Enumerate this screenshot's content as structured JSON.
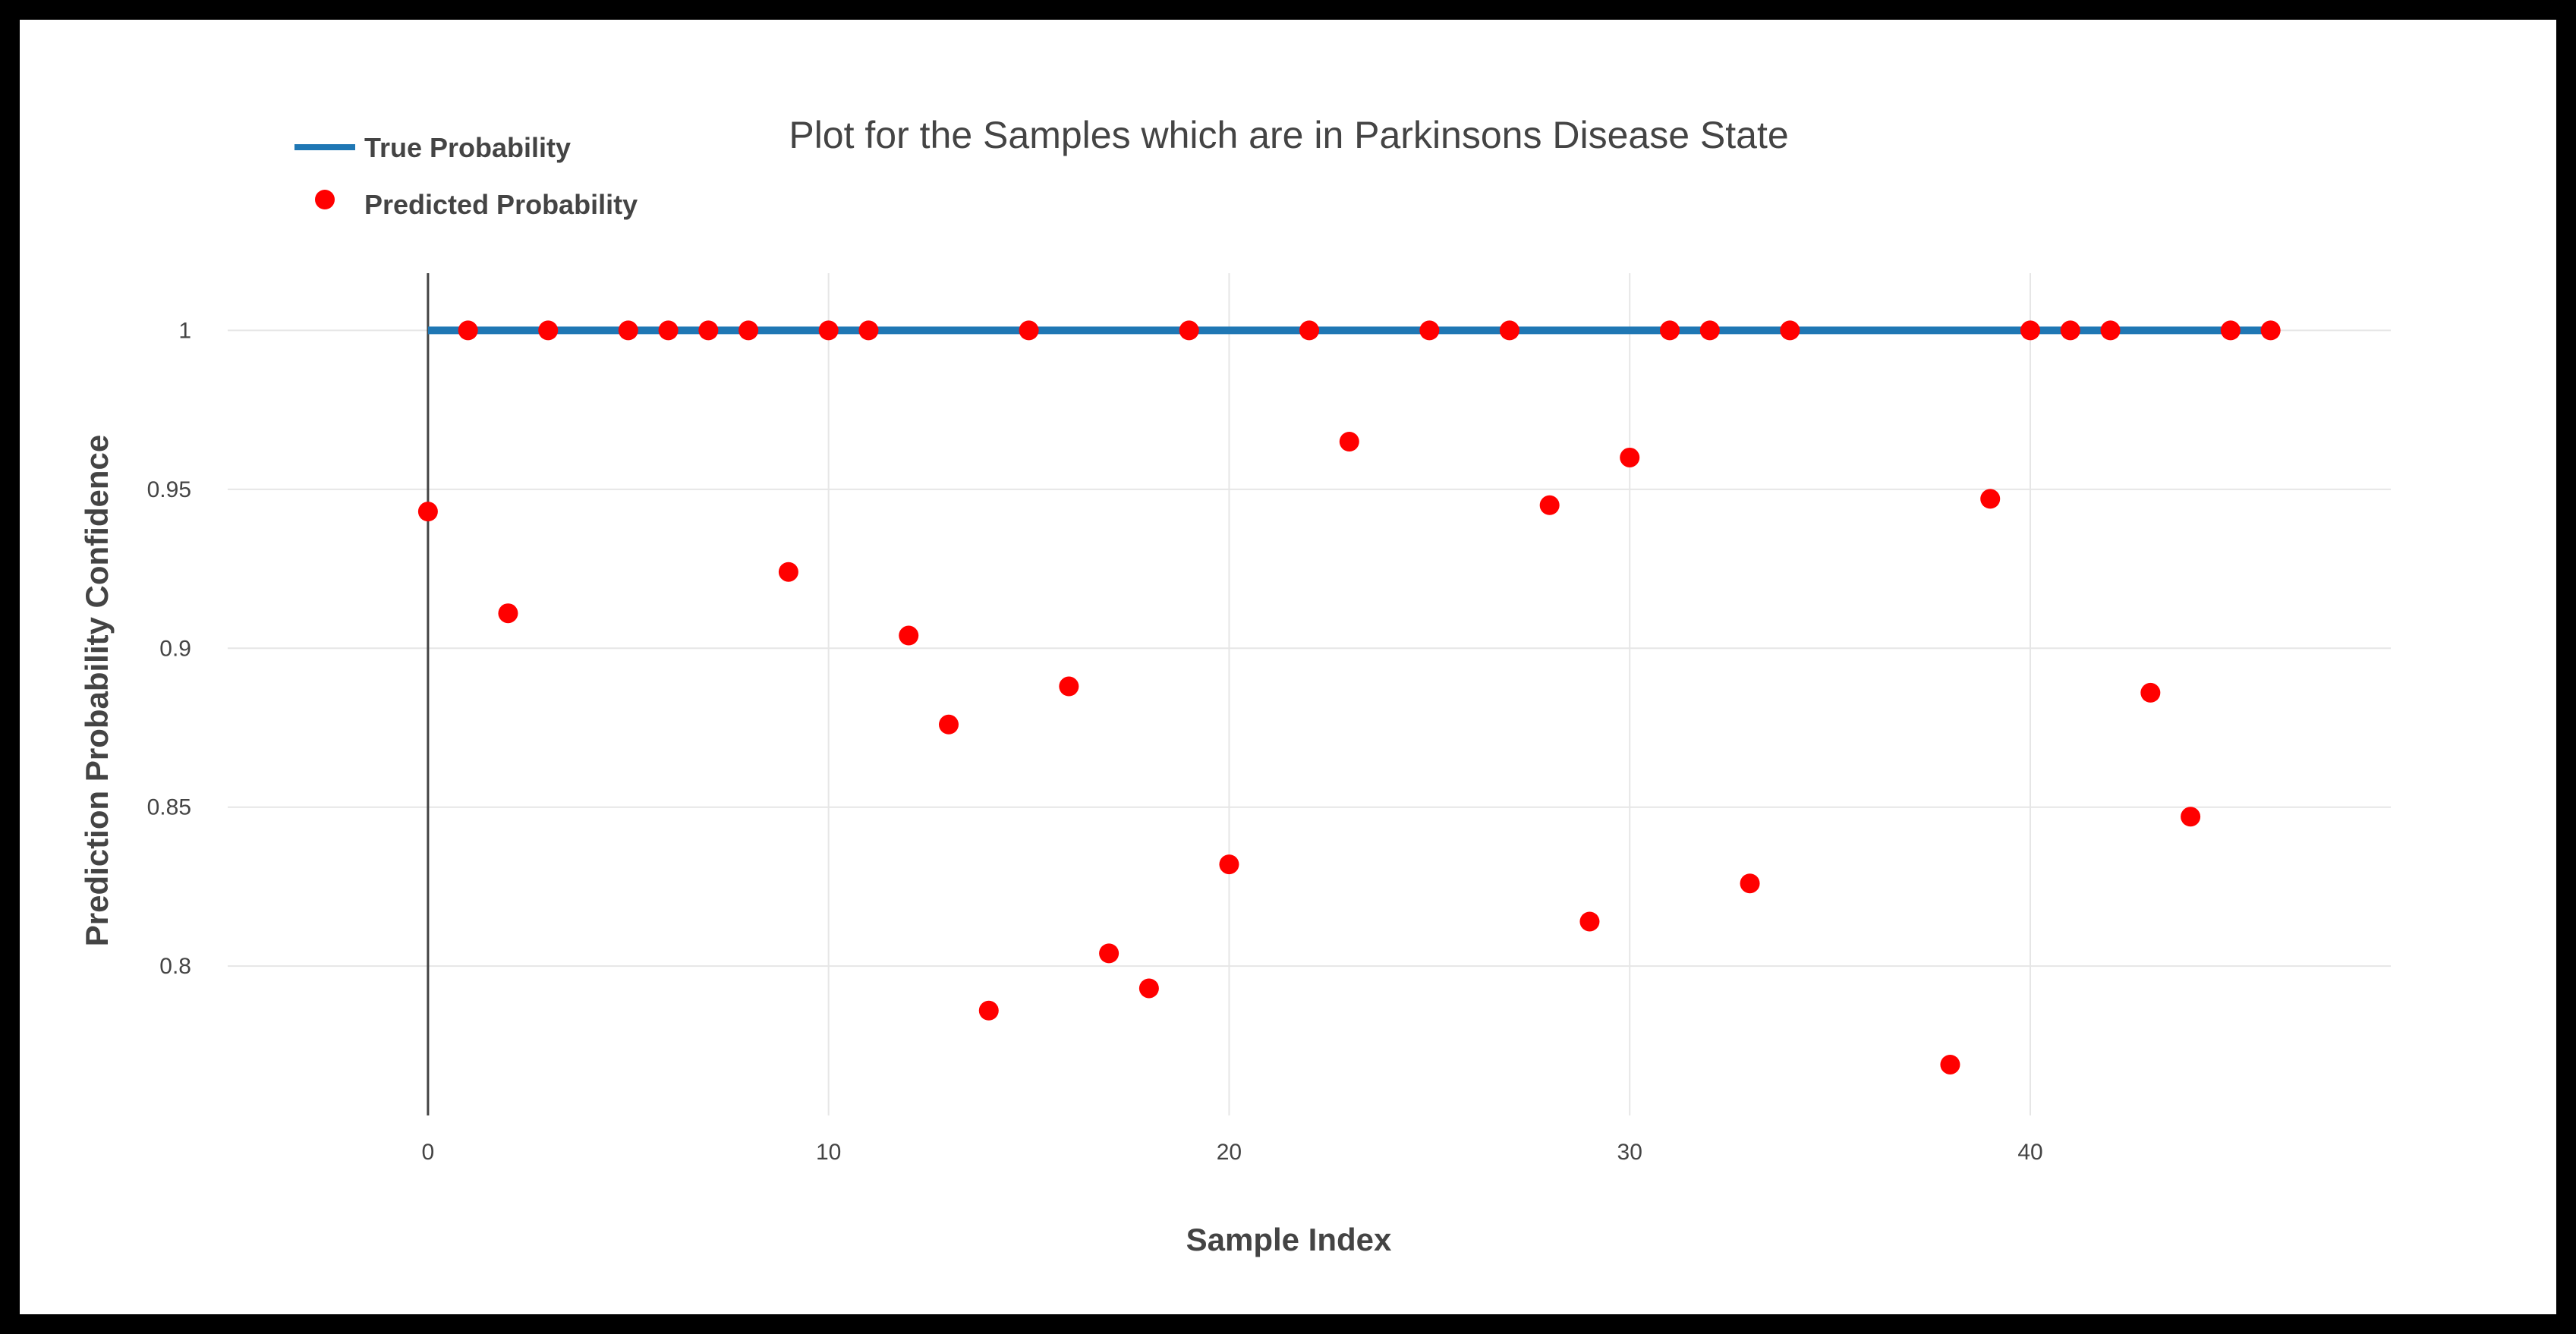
{
  "chart_data": {
    "type": "scatter",
    "title": "Plot for the Samples which are in Parkinsons Disease State",
    "xlabel": "Sample Index",
    "ylabel": "Prediction Probability Confidence",
    "xlim": [
      -5,
      49
    ],
    "ylim": [
      0.753,
      1.018
    ],
    "x_ticks": [
      0,
      10,
      20,
      30,
      40
    ],
    "y_ticks": [
      0.8,
      0.85,
      0.9,
      0.95,
      1
    ],
    "y_tick_labels": [
      "0.8",
      "0.85",
      "0.9",
      "0.95",
      "1"
    ],
    "grid": true,
    "legend_position": "top-left",
    "series": [
      {
        "name": "True Probability",
        "kind": "line",
        "color": "#1f77b4",
        "x": [
          0,
          46
        ],
        "y": [
          1,
          1
        ]
      },
      {
        "name": "Predicted Probability",
        "kind": "markers",
        "color": "#ff0000",
        "x": [
          0,
          1,
          2,
          3,
          5,
          6,
          7,
          8,
          9,
          10,
          11,
          12,
          13,
          14,
          15,
          16,
          17,
          18,
          19,
          20,
          22,
          23,
          25,
          27,
          28,
          29,
          30,
          31,
          32,
          33,
          34,
          38,
          39,
          40,
          41,
          42,
          43,
          44,
          45,
          46
        ],
        "y": [
          0.943,
          1,
          0.911,
          1,
          1,
          1,
          1,
          1,
          0.924,
          1,
          1,
          0.904,
          0.876,
          0.786,
          1,
          0.888,
          0.804,
          0.793,
          1,
          0.832,
          1,
          0.965,
          1,
          1,
          0.945,
          0.814,
          0.96,
          1,
          1,
          0.826,
          1,
          0.769,
          0.947,
          1,
          1,
          1,
          0.886,
          0.847,
          1,
          1
        ]
      }
    ]
  }
}
